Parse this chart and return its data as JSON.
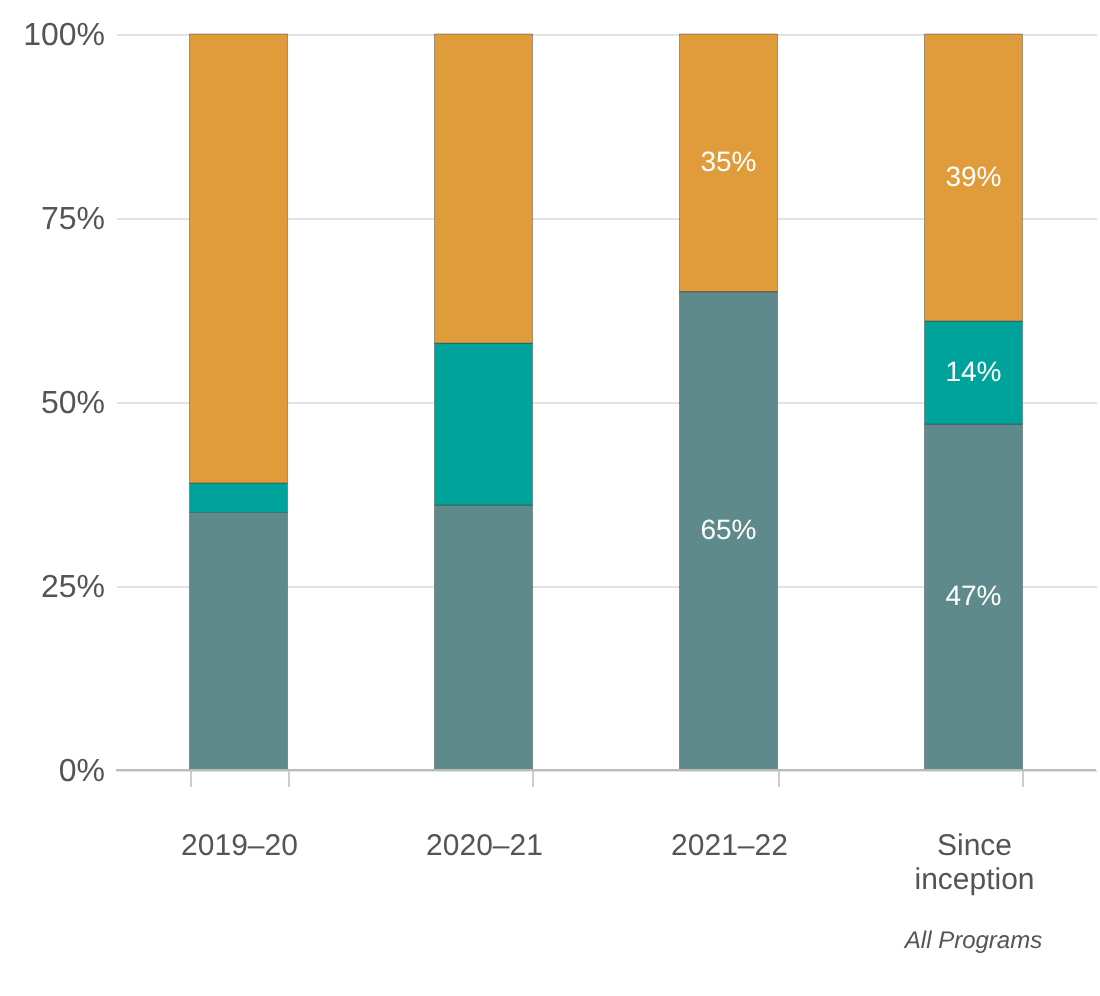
{
  "chart_data": {
    "type": "bar",
    "stacked": true,
    "categories": [
      "2019–20",
      "2020–21",
      "2021–22",
      "Since inception"
    ],
    "series": [
      {
        "color": "#5f8a8b",
        "values": [
          35,
          36,
          65,
          47
        ],
        "value_labels": [
          null,
          null,
          "65%",
          "47%"
        ]
      },
      {
        "color": "#00a39b",
        "values": [
          4,
          22,
          0,
          14
        ],
        "value_labels": [
          null,
          null,
          null,
          "14%"
        ]
      },
      {
        "color": "#e09c3a",
        "values": [
          61,
          42,
          35,
          39
        ],
        "value_labels": [
          null,
          null,
          "35%",
          "39%"
        ]
      }
    ],
    "ylim": [
      0,
      100
    ],
    "yticks": [
      {
        "value": 0,
        "label": "0%"
      },
      {
        "value": 25,
        "label": "25%"
      },
      {
        "value": 50,
        "label": "50%"
      },
      {
        "value": 75,
        "label": "75%"
      },
      {
        "value": 100,
        "label": "100%"
      }
    ],
    "grid": "y",
    "annotations": [
      "All Programs"
    ]
  }
}
